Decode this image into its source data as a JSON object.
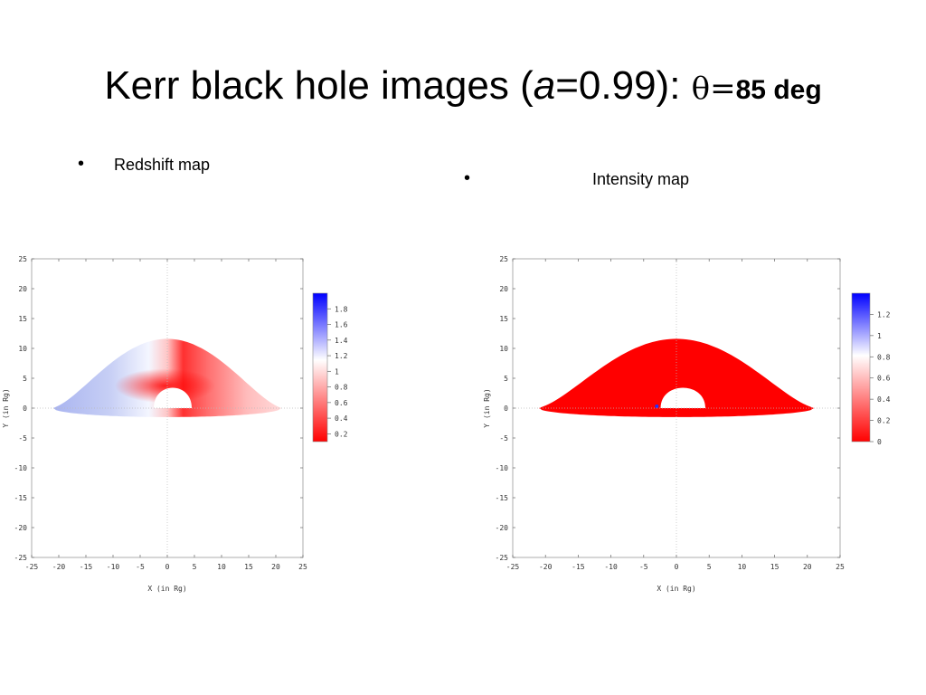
{
  "slide": {
    "title_pre": "Kerr black hole images (",
    "title_a": "a",
    "title_mid": "=0.99): ",
    "title_theta": "θ=",
    "title_deg": "85 deg",
    "bullet_left": "Redshift map",
    "bullet_right": "Intensity map"
  },
  "colors": {
    "red": "#ff0000",
    "blue": "#0000ff",
    "white": "#ffffff"
  },
  "chart_data": [
    {
      "type": "heatmap",
      "title": "",
      "xlabel": "X (in Rg)",
      "ylabel": "Y (in Rg)",
      "xlim": [
        -25,
        25
      ],
      "ylim": [
        -25,
        25
      ],
      "xticks": [
        -25,
        -20,
        -15,
        -10,
        -5,
        0,
        5,
        10,
        15,
        20,
        25
      ],
      "yticks": [
        25,
        20,
        15,
        10,
        5,
        0,
        -5,
        -10,
        -15,
        -20,
        -25
      ],
      "colorbar": {
        "min": 0.1,
        "max": 2.0,
        "ticks": [
          1.8,
          1.6,
          1.4,
          1.2,
          1,
          0.8,
          0.6,
          0.4,
          0.2
        ]
      },
      "disk_extent_x": [
        -21,
        21
      ],
      "disk_max_y": 11,
      "shadow_x": [
        -2,
        4
      ]
    },
    {
      "type": "heatmap",
      "title": "",
      "xlabel": "X (in Rg)",
      "ylabel": "Y (in Rg)",
      "xlim": [
        -25,
        25
      ],
      "ylim": [
        -25,
        25
      ],
      "xticks": [
        -25,
        -20,
        -15,
        -10,
        -5,
        0,
        5,
        10,
        15,
        20,
        25
      ],
      "yticks": [
        25,
        20,
        15,
        10,
        5,
        0,
        -5,
        -10,
        -15,
        -20,
        -25
      ],
      "colorbar": {
        "min": 0,
        "max": 1.4,
        "ticks": [
          1.2,
          1,
          0.8,
          0.6,
          0.4,
          0.2,
          0
        ]
      },
      "disk_extent_x": [
        -21,
        21
      ],
      "disk_max_y": 11,
      "shadow_x": [
        -2,
        4
      ]
    }
  ]
}
